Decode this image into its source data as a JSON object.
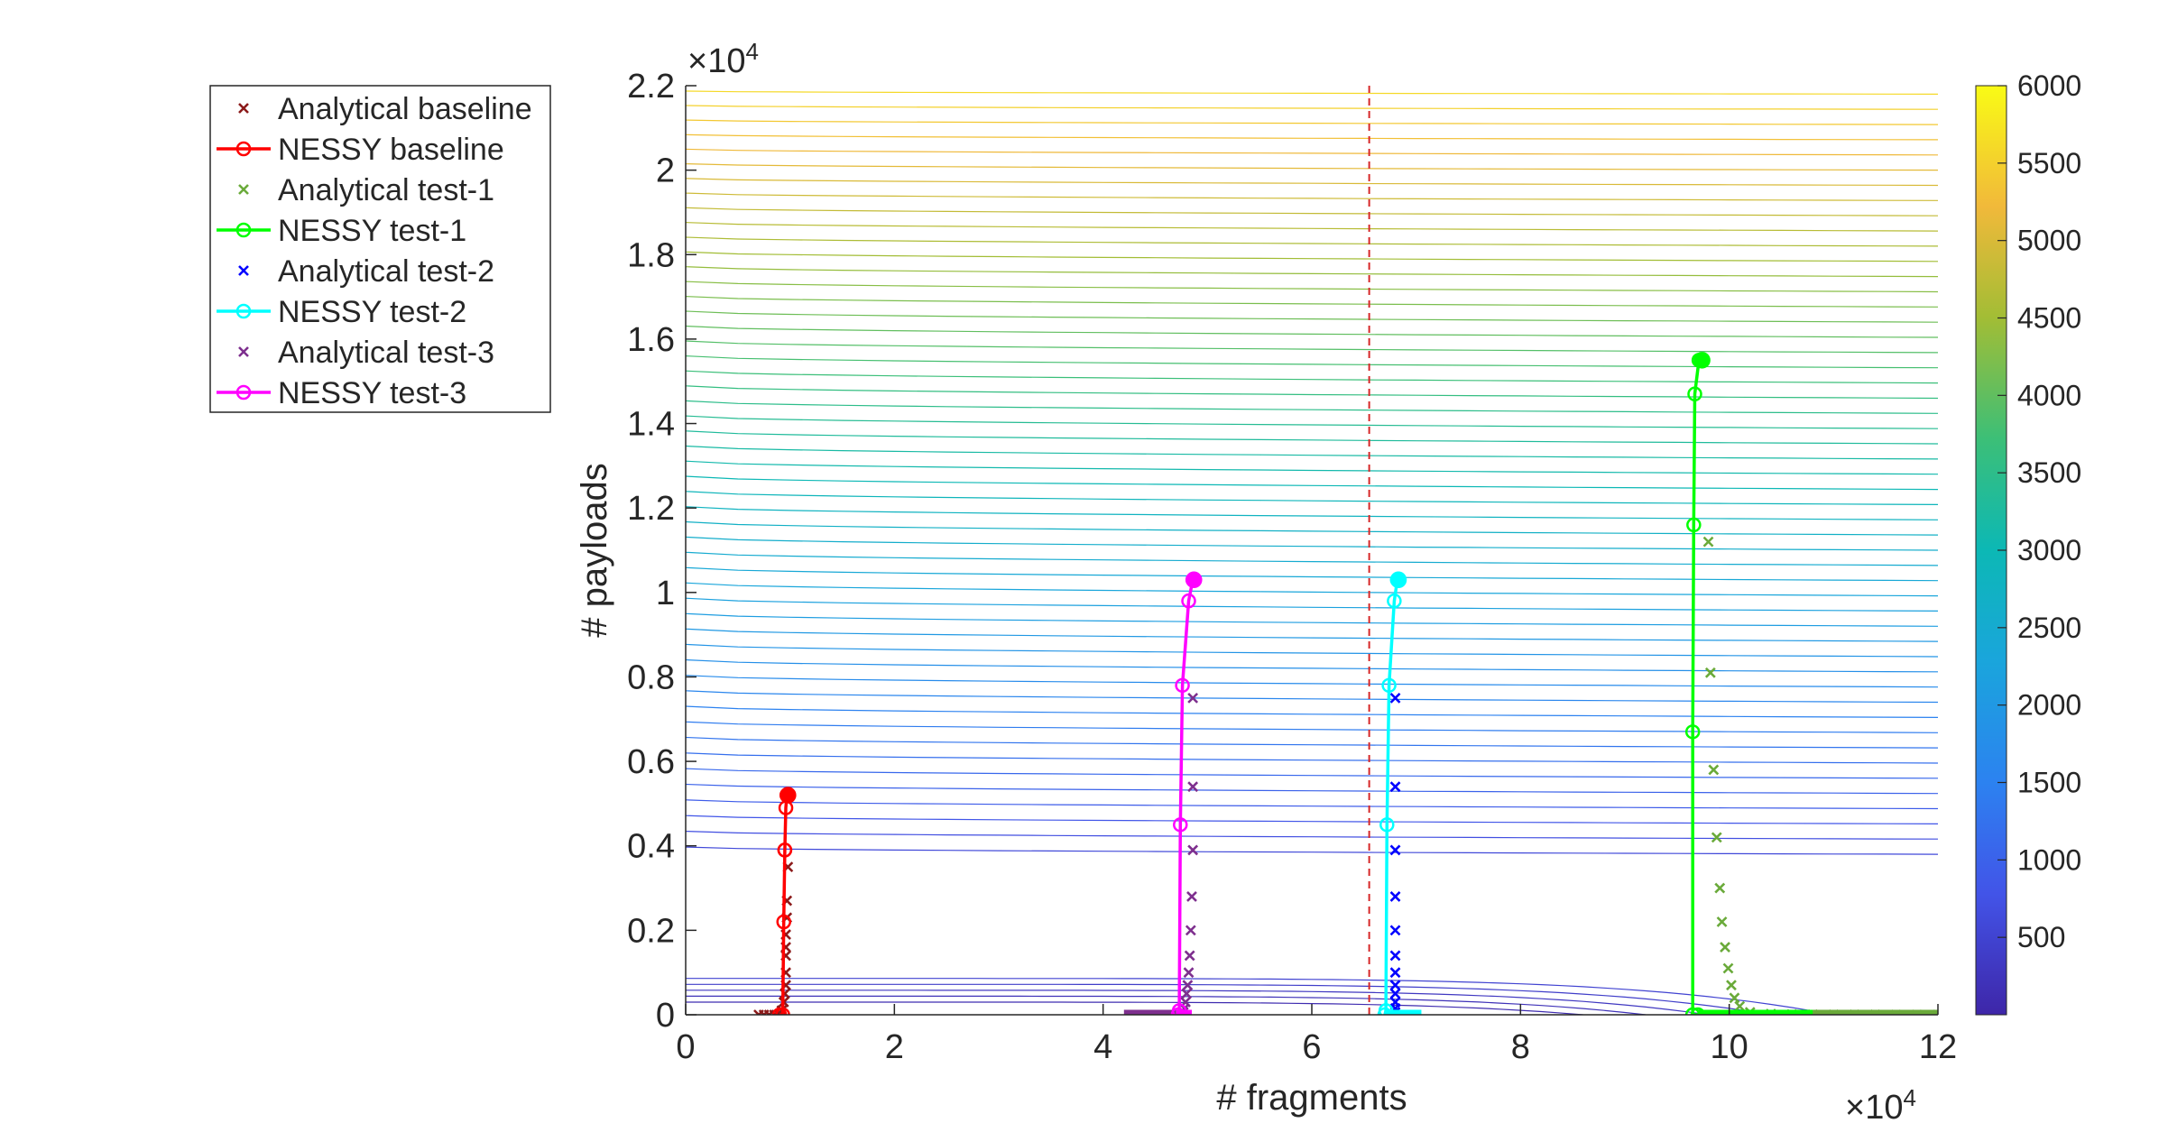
{
  "chart_data": {
    "type": "line",
    "xlabel": "# fragments",
    "ylabel": "# payloads",
    "x_exponent_label": "×10",
    "x_exponent": "4",
    "y_exponent_label": "×10",
    "y_exponent": "4",
    "xlim": [
      0,
      120000
    ],
    "ylim": [
      0,
      22000
    ],
    "xticks": [
      0,
      20000,
      40000,
      60000,
      80000,
      100000,
      120000
    ],
    "xtick_labels": [
      "0",
      "2",
      "4",
      "6",
      "8",
      "10",
      "12"
    ],
    "yticks": [
      0,
      2000,
      4000,
      6000,
      8000,
      10000,
      12000,
      14000,
      16000,
      18000,
      20000,
      22000
    ],
    "ytick_labels": [
      "0",
      "0.2",
      "0.4",
      "0.6",
      "0.8",
      "1",
      "1.2",
      "1.4",
      "1.6",
      "1.8",
      "2",
      "2.2"
    ],
    "vline_x": 65500,
    "vline_color": "#d62728",
    "grid": false,
    "legend_position": "outside-left",
    "colorbar": {
      "min": 0,
      "max": 6000,
      "ticks": [
        500,
        1000,
        1500,
        2000,
        2500,
        3000,
        3500,
        4000,
        4500,
        5000,
        5500,
        6000
      ],
      "tick_labels": [
        "500",
        "1000",
        "1500",
        "2000",
        "2500",
        "3000",
        "3500",
        "4000",
        "4500",
        "5000",
        "5500",
        "6000"
      ],
      "colormap": "parula"
    },
    "contours": {
      "levels_from": 100,
      "levels_to": 5900,
      "level_step": 100,
      "curve_base": 2000,
      "curve_slope": 3.6
    },
    "series": [
      {
        "name": "Analytical baseline",
        "kind": "analytical",
        "color": "#8b1a1a",
        "x": [
          7000,
          7500,
          8000,
          8500,
          9000,
          9200,
          9400,
          9500,
          9600,
          9600,
          9600,
          9600,
          9600,
          9700,
          9700,
          9800
        ],
        "y": [
          0,
          0,
          0,
          0,
          0,
          100,
          300,
          500,
          700,
          1000,
          1400,
          1600,
          1900,
          2300,
          2700,
          3500
        ]
      },
      {
        "name": "NESSY baseline",
        "kind": "nessy",
        "color": "#ff0000",
        "x": [
          9000,
          9300,
          9400,
          9500,
          9500,
          9600,
          9700,
          9800
        ],
        "y": [
          0,
          0,
          2200,
          3900,
          3900,
          4900,
          5200,
          5200
        ]
      },
      {
        "name": "Analytical test-1",
        "kind": "analytical",
        "color": "#6aaa3a",
        "x": [
          98000,
          98200,
          98500,
          98800,
          99100,
          99300,
          99600,
          99900,
          100200,
          100500,
          101000,
          102000,
          104000,
          106000,
          108000,
          110000,
          112000,
          114000,
          116000,
          118000,
          120000
        ],
        "y": [
          11200,
          8100,
          5800,
          4200,
          3000,
          2200,
          1600,
          1100,
          700,
          400,
          200,
          60,
          20,
          10,
          5,
          3,
          2,
          1,
          0,
          0,
          0
        ],
        "baseline_from": 100000,
        "baseline_to": 120000
      },
      {
        "name": "NESSY test-1",
        "kind": "nessy",
        "color": "#00ff00",
        "x": [
          97000,
          96500,
          96500,
          96600,
          96700,
          97100,
          97400
        ],
        "y": [
          0,
          0,
          6700,
          11600,
          14700,
          15500,
          15500
        ],
        "baseline_from": 97000,
        "baseline_to": 108000
      },
      {
        "name": "Analytical test-2",
        "kind": "analytical",
        "color": "#0000ff",
        "x": [
          68000,
          68000,
          68000,
          68000,
          68000,
          68000,
          68000,
          68000,
          68000,
          68000,
          68000,
          68000
        ],
        "y": [
          7500,
          5400,
          3900,
          2800,
          2000,
          1400,
          1000,
          700,
          500,
          300,
          150,
          60
        ]
      },
      {
        "name": "NESSY test-2",
        "kind": "nessy",
        "color": "#00ffff",
        "x": [
          67000,
          67100,
          67200,
          67400,
          67900,
          68200,
          68300
        ],
        "y": [
          0,
          100,
          4500,
          7800,
          9800,
          10300,
          10300
        ],
        "baseline_from": 67000,
        "baseline_to": 70500
      },
      {
        "name": "Analytical test-3",
        "kind": "analytical",
        "color": "#7e2f8e",
        "x": [
          48600,
          48600,
          48600,
          48500,
          48400,
          48300,
          48200,
          48100,
          48000,
          47900,
          47800,
          47700
        ],
        "y": [
          7500,
          5400,
          3900,
          2800,
          2000,
          1400,
          1000,
          700,
          500,
          300,
          150,
          60
        ],
        "baseline_from": 42000,
        "baseline_to": 47000
      },
      {
        "name": "NESSY test-3",
        "kind": "nessy",
        "color": "#ff00ff",
        "x": [
          47200,
          47300,
          47400,
          47600,
          48200,
          48600,
          48700
        ],
        "y": [
          0,
          100,
          4500,
          7800,
          9800,
          10300,
          10300
        ],
        "baseline_from": 47000,
        "baseline_to": 48500
      }
    ]
  }
}
